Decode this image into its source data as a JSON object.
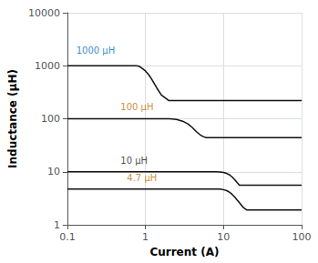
{
  "chart_data": {
    "type": "line",
    "xlabel": "Current (A)",
    "ylabel": "Inductance (μH)",
    "log": true,
    "xlim": [
      0.1,
      100
    ],
    "ylim": [
      1,
      10000
    ],
    "xticks": [
      0.1,
      1,
      10,
      100
    ],
    "yticks": [
      1,
      10,
      100,
      1000,
      10000
    ],
    "grid": true,
    "series": [
      {
        "color": "#111111",
        "x": [
          0.1,
          0.7,
          0.75,
          0.8,
          0.85,
          0.9,
          1.0,
          1.1,
          1.2,
          1.4,
          1.6,
          2.0,
          100
        ],
        "values": [
          1000,
          1000,
          998,
          990,
          960,
          900,
          800,
          680,
          560,
          380,
          280,
          220,
          220
        ]
      },
      {
        "color": "#111111",
        "x": [
          0.1,
          1.8,
          2.0,
          2.2,
          2.5,
          3.0,
          3.5,
          4.0,
          4.5,
          5.0,
          5.5,
          6.0,
          100
        ],
        "values": [
          100,
          100,
          100,
          99,
          97,
          90,
          80,
          68,
          57,
          50,
          46,
          44,
          44
        ]
      },
      {
        "color": "#111111",
        "x": [
          0.1,
          7.0,
          8.0,
          9.0,
          10.0,
          11.0,
          12.0,
          13.0,
          14.0,
          15.0,
          16.0,
          100
        ],
        "values": [
          10,
          10,
          10,
          9.9,
          9.7,
          9.3,
          8.7,
          7.9,
          7.0,
          6.2,
          5.6,
          5.6
        ]
      },
      {
        "color": "#111111",
        "x": [
          0.1,
          7.5,
          8.5,
          9.5,
          10.0,
          11.0,
          12.0,
          13.0,
          14.0,
          15.0,
          16.0,
          18.0,
          20.0,
          100
        ],
        "values": [
          4.7,
          4.7,
          4.7,
          4.65,
          4.6,
          4.4,
          4.1,
          3.7,
          3.3,
          2.9,
          2.6,
          2.1,
          1.9,
          1.9
        ]
      }
    ],
    "annotations": [
      {
        "text": "1000 μH",
        "x": 0.13,
        "y": 1600,
        "color": "#0070c0"
      },
      {
        "text": "100 μH",
        "x": 0.48,
        "y": 135,
        "color": "#c07000"
      },
      {
        "text": "10 μH",
        "x": 0.48,
        "y": 13.5,
        "color": "#1a1a1a"
      },
      {
        "text": "4.7 μH",
        "x": 0.58,
        "y": 6.2,
        "color": "#c07000"
      }
    ]
  }
}
